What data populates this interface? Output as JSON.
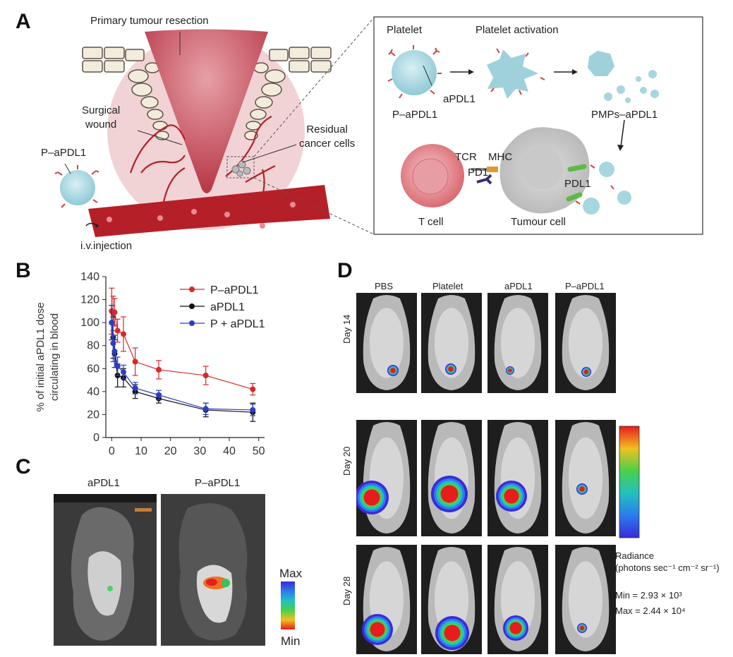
{
  "panels": {
    "a": "A",
    "b": "B",
    "c": "C",
    "d": "D"
  },
  "schematic": {
    "primary_resection": "Primary tumour resection",
    "surgical_wound": "Surgical\nwound",
    "residual_cells": "Residual\ncancer cells",
    "p_apdl1": "P–aPDL1",
    "iv_injection": "i.v.injection"
  },
  "inset": {
    "platelet": "Platelet",
    "platelet_activation": "Platelet activation",
    "apdl1": "aPDL1",
    "p_apdl1": "P–aPDL1",
    "pmps": "PMPs–aPDL1",
    "tcr": "TCR",
    "mhc": "MHC",
    "pd1": "PD1",
    "pdl1": "PDL1",
    "t_cell": "T cell",
    "tumour_cell": "Tumour cell"
  },
  "chart_data": {
    "type": "line",
    "ylabel": "% of initial aPDL1 dose\ncirculating in blood",
    "xlabel": "",
    "xlim": [
      -2,
      52
    ],
    "ylim": [
      0,
      140
    ],
    "xticks": [
      0,
      10,
      20,
      30,
      40,
      50
    ],
    "yticks": [
      0,
      20,
      40,
      60,
      80,
      100,
      120,
      140
    ],
    "legend": "top-right",
    "series": [
      {
        "name": "P–aPDL1",
        "color": "#d62a2a",
        "x": [
          0,
          0.5,
          1,
          2,
          4,
          8,
          16,
          32,
          48
        ],
        "y": [
          110,
          108,
          109,
          93,
          90,
          66,
          59,
          54,
          42
        ],
        "err": [
          20,
          15,
          12,
          10,
          15,
          12,
          8,
          8,
          5
        ]
      },
      {
        "name": "aPDL1",
        "color": "#111111",
        "x": [
          0,
          0.5,
          1,
          2,
          4,
          8,
          16,
          32,
          48
        ],
        "y": [
          100,
          87,
          73,
          54,
          52,
          40,
          34,
          24,
          22
        ],
        "err": [
          15,
          18,
          12,
          10,
          8,
          6,
          4,
          6,
          8
        ]
      },
      {
        "name": "P + aPDL1",
        "color": "#2b3fc4",
        "x": [
          0,
          0.5,
          1,
          2,
          4,
          8,
          16,
          32,
          48
        ],
        "y": [
          100,
          82,
          75,
          62,
          57,
          43,
          37,
          25,
          24
        ],
        "err": [
          15,
          16,
          14,
          8,
          6,
          5,
          4,
          5,
          5
        ]
      }
    ]
  },
  "panel_c": {
    "labels": [
      "aPDL1",
      "P–aPDL1"
    ],
    "scale_max": "Max",
    "scale_min": "Min"
  },
  "panel_d": {
    "columns": [
      "PBS",
      "Platelet",
      "aPDL1",
      "P–aPDL1"
    ],
    "rows": [
      "Day 14",
      "Day 20",
      "Day 28"
    ],
    "radiance_title": "Radiance",
    "radiance_units": "(photons sec⁻¹ cm⁻² sr⁻¹)",
    "min_value": "Min = 2.93 × 10³",
    "max_value": "Max = 2.44 × 10⁴"
  }
}
